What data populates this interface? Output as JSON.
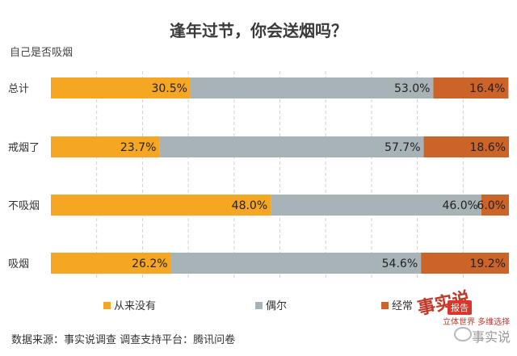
{
  "chart_data": {
    "type": "bar",
    "stacked": true,
    "orientation": "horizontal",
    "title": "逢年过节，你会送烟吗？",
    "ylabel": "自己是否吸烟",
    "categories": [
      "总计",
      "戒烟了",
      "不吸烟",
      "吸烟"
    ],
    "series": [
      {
        "name": "从来没有",
        "values": [
          30.5,
          23.7,
          48.0,
          26.2
        ],
        "labels": [
          "30.5%",
          "23.7%",
          "48.0%",
          "26.2%"
        ],
        "color": "#f5a623"
      },
      {
        "name": "偶尔",
        "values": [
          53.0,
          57.7,
          46.0,
          54.6
        ],
        "labels": [
          "53.0%",
          "57.7%",
          "46.0%",
          "54.6%"
        ],
        "color": "#a8b3b7"
      },
      {
        "name": "经常",
        "values": [
          16.4,
          18.6,
          6.0,
          19.2
        ],
        "labels": [
          "16.4%",
          "18.6%",
          "6.0%",
          "19.2%"
        ],
        "color": "#cc6328"
      }
    ],
    "xlim": [
      0,
      100
    ],
    "grid": true,
    "legend": "bottom"
  },
  "source_note": "数据来源：事实说调查   调查支持平台：腾讯问卷",
  "logo": {
    "main": "事实说",
    "badge": "报告",
    "sub": "立体世界 多维选择"
  },
  "watermark": "事实说"
}
